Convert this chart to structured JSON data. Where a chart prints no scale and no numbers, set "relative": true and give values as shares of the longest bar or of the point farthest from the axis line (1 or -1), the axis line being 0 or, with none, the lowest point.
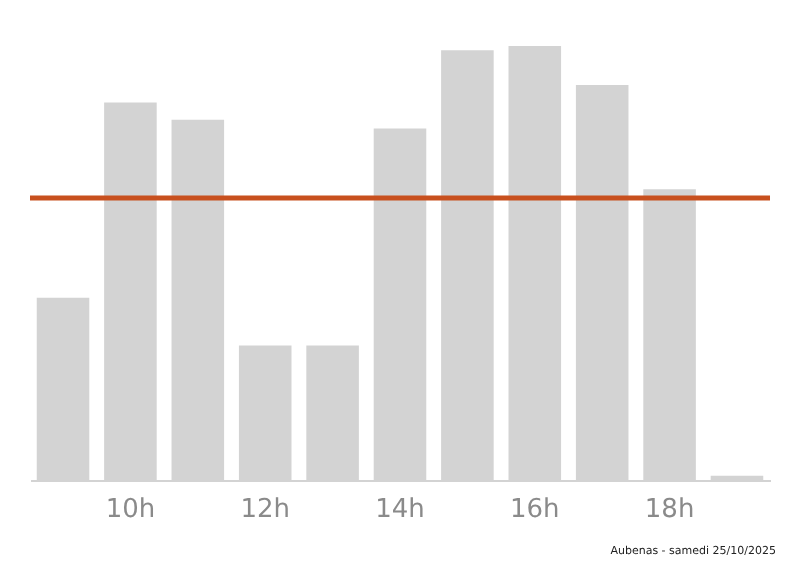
{
  "chart_data": {
    "type": "bar",
    "relative": true,
    "categories": [
      null,
      "10h",
      null,
      "12h",
      null,
      "14h",
      null,
      "16h",
      null,
      "18h",
      null
    ],
    "values": [
      0.42,
      0.87,
      0.83,
      0.31,
      0.31,
      0.81,
      0.99,
      1,
      0.91,
      0.67,
      0.01
    ],
    "color": "#d3d3d3",
    "ref_lines": [
      {
        "axis": "y",
        "value": 0.65,
        "color": "#c8501e"
      }
    ],
    "annotations": [
      "Aubenas - samedi 25/10/2025"
    ]
  }
}
